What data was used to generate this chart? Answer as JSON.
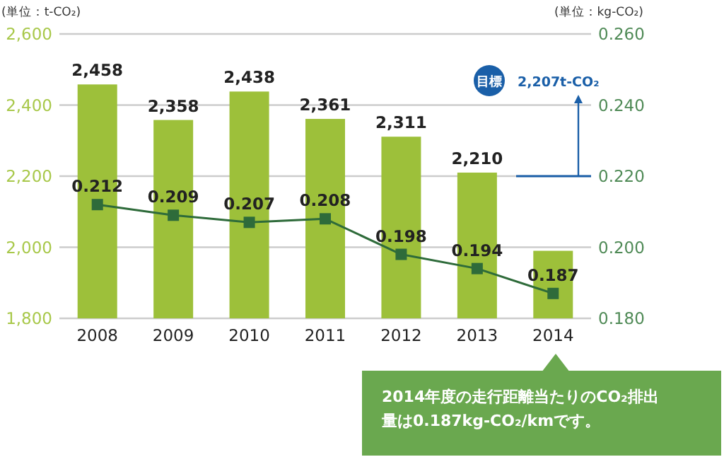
{
  "chart_data": {
    "type": "bar",
    "ylabel": "(単位：t-CO₂)",
    "y2label": "(単位：kg-CO₂)",
    "categories": [
      "2008",
      "2009",
      "2010",
      "2011",
      "2012",
      "2013",
      "2014"
    ],
    "series": [
      {
        "color": "#9dc03a",
        "values": [
          2458,
          2358,
          2438,
          2361,
          2311,
          2210,
          1990
        ],
        "value_labels": [
          "2,458",
          "2,358",
          "2,438",
          "2,361",
          "2,311",
          "2,210",
          null
        ]
      },
      {
        "type": "line",
        "axis": "y2",
        "color": "#2e6b3a",
        "marker": "square",
        "values": [
          0.212,
          0.209,
          0.207,
          0.208,
          0.198,
          0.194,
          0.187
        ],
        "value_labels": [
          "0.212",
          "0.209",
          "0.207",
          "0.208",
          "0.198",
          "0.194",
          "0.187"
        ]
      }
    ],
    "ylim": [
      1800,
      2600
    ],
    "yticks": [
      {
        "value": 1800,
        "label": "1,800"
      },
      {
        "value": 2000,
        "label": "2,000"
      },
      {
        "value": 2200,
        "label": "2,200"
      },
      {
        "value": 2400,
        "label": "2,400"
      },
      {
        "value": 2600,
        "label": "2,600"
      }
    ],
    "y2lim": [
      0.18,
      0.26
    ],
    "y2ticks": [
      {
        "value": 0.18,
        "label": "0.180"
      },
      {
        "value": 0.2,
        "label": "0.200"
      },
      {
        "value": 0.22,
        "label": "0.220"
      },
      {
        "value": 0.24,
        "label": "0.240"
      },
      {
        "value": 0.26,
        "label": "0.260"
      }
    ],
    "grid": "y",
    "annotations": [
      "目標",
      "2,207t-CO₂",
      "2014年度の走行距離当たりのCO₂排出量は0.187kg-CO₂/kmです。"
    ]
  }
}
